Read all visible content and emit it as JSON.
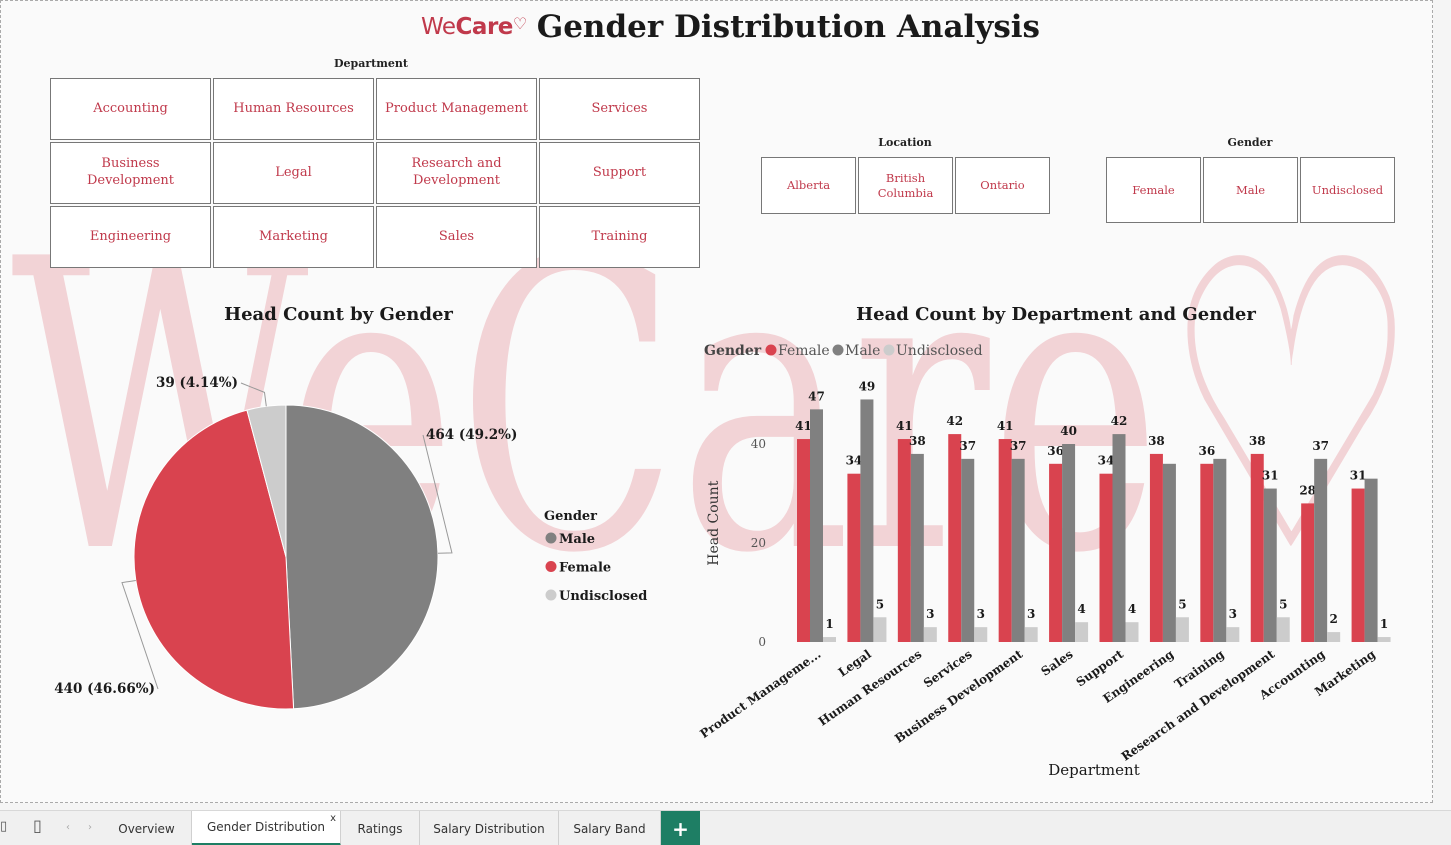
{
  "header": {
    "logo_we": "We",
    "logo_care": "Care",
    "logo_heart": "♡",
    "title": "Gender Distribution Analysis",
    "watermark": "WeCare♡"
  },
  "slicers": {
    "department": {
      "title": "Department",
      "items": [
        "Accounting",
        "Human Resources",
        "Product Management",
        "Services",
        "Business\nDevelopment",
        "Legal",
        "Research and\nDevelopment",
        "Support",
        "Engineering",
        "Marketing",
        "Sales",
        "Training"
      ]
    },
    "location": {
      "title": "Location",
      "items": [
        "Alberta",
        "British\nColumbia",
        "Ontario"
      ]
    },
    "gender": {
      "title": "Gender",
      "items": [
        "Female",
        "Male",
        "Undisclosed"
      ]
    }
  },
  "colors": {
    "female": "#d9434f",
    "male": "#808080",
    "undisclosed": "#cccccc",
    "accent": "#c0394b",
    "tab_green": "#1e7e64",
    "watermark": "#f0c6ca"
  },
  "chart_data": [
    {
      "type": "pie",
      "title": "Head Count by Gender",
      "legend_title": "Gender",
      "legend_position": "right",
      "slices": [
        {
          "name": "Male",
          "value": 464,
          "label": "464 (49.2%)"
        },
        {
          "name": "Female",
          "value": 440,
          "label": "440 (46.66%)"
        },
        {
          "name": "Undisclosed",
          "value": 39,
          "label": "39 (4.14%)"
        }
      ]
    },
    {
      "type": "bar",
      "title": "Head Count by Department and Gender",
      "legend_title": "Gender",
      "legend_position": "top-left",
      "xlabel": "Department",
      "ylabel": "Head Count",
      "ylim": [
        0,
        50
      ],
      "yticks": [
        0,
        20,
        40
      ],
      "categories": [
        "Product Manageme...",
        "Legal",
        "Human Resources",
        "Services",
        "Business Development",
        "Sales",
        "Support",
        "Engineering",
        "Training",
        "Research and Development",
        "Accounting",
        "Marketing"
      ],
      "series": [
        {
          "name": "Female",
          "values": [
            41,
            34,
            41,
            42,
            41,
            36,
            34,
            38,
            36,
            38,
            28,
            31
          ],
          "labels": [
            "41",
            "34",
            "41",
            "42",
            "41",
            "36",
            "34",
            "38",
            "36",
            "38",
            "28",
            "31"
          ]
        },
        {
          "name": "Male",
          "values": [
            47,
            49,
            38,
            37,
            37,
            40,
            42,
            36,
            37,
            31,
            37,
            33
          ],
          "labels": [
            "47",
            "49",
            "38",
            "37",
            "37",
            "40",
            "42",
            "",
            "",
            "31",
            "37",
            ""
          ]
        },
        {
          "name": "Undisclosed",
          "values": [
            1,
            5,
            3,
            3,
            3,
            4,
            4,
            5,
            3,
            5,
            2,
            1
          ],
          "labels": [
            "1",
            "5",
            "3",
            "3",
            "3",
            "4",
            "4",
            "5",
            "3",
            "5",
            "2",
            "1"
          ]
        }
      ]
    }
  ],
  "tabs": {
    "items": [
      "Overview",
      "Gender Distribution",
      "Ratings",
      "Salary Distribution",
      "Salary Band"
    ],
    "active": "Gender Distribution",
    "close": "x",
    "add": "+"
  }
}
